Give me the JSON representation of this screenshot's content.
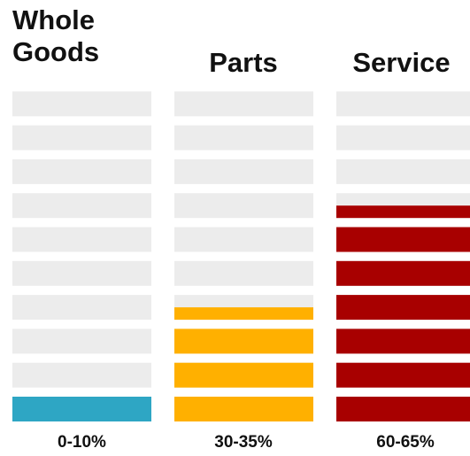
{
  "chart_data": {
    "type": "bar",
    "title": "",
    "segments_per_column": 10,
    "empty_color": "#ececec",
    "columns": [
      {
        "name_lines": [
          "Whole",
          "Goods"
        ],
        "label": "0-10%",
        "filled_segments": 1,
        "partial_fill": 0,
        "color": "#2ea6c4"
      },
      {
        "name_lines": [
          "Parts"
        ],
        "label": "30-35%",
        "filled_segments": 3,
        "partial_fill": 0.5,
        "color": "#ffb000"
      },
      {
        "name_lines": [
          "Service"
        ],
        "label": "60-65%",
        "filled_segments": 6,
        "partial_fill": 0.5,
        "color": "#a80000"
      }
    ]
  }
}
